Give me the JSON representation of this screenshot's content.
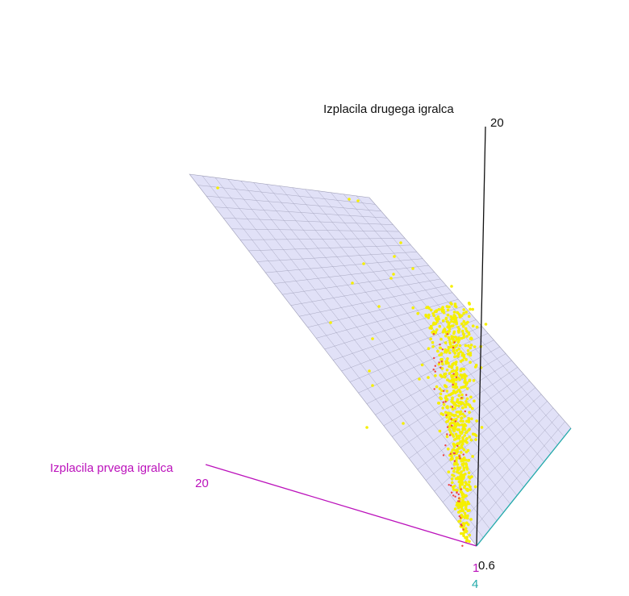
{
  "chart_data": {
    "type": "scatter",
    "projection": "3d",
    "title": "",
    "xlabel": "Izplacila prvega igralca",
    "ylabel": "Izplacila drugega igralca",
    "zlabel": "",
    "axes": {
      "x": {
        "label": "Izplacila prvega igralca",
        "ticks": [
          "20",
          "1"
        ],
        "color": "#bb11bb"
      },
      "y": {
        "label": "Izplacila drugega igralca",
        "ticks": [
          "20",
          "0.6"
        ],
        "color": "#111111"
      },
      "z": {
        "label": "",
        "ticks": [
          "4"
        ],
        "color": "#22aaaa"
      }
    },
    "surface": {
      "type": "plane",
      "color": "#c8c8f0",
      "grid_color": "#9a9ab4",
      "opacity": 0.55
    },
    "grid": true,
    "legend": "none",
    "series": [
      {
        "color": "#f5ef00",
        "points": 700
      },
      {
        "color": "#ee4444",
        "points": 60
      }
    ]
  },
  "colors": {
    "x_axis": "#bb11bb",
    "y_axis": "#111111",
    "z_axis": "#22aaaa",
    "points_main": "#f5ef00",
    "points_accent": "#ee4444"
  }
}
